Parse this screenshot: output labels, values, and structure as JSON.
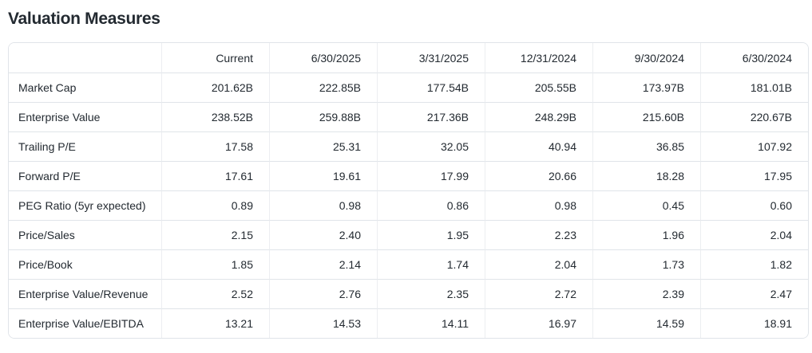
{
  "page": {
    "title": "Valuation Measures"
  },
  "colors": {
    "text": "#232a31",
    "border": "#e0e4e9",
    "background": "#ffffff"
  },
  "table": {
    "columns": [
      "",
      "Current",
      "6/30/2025",
      "3/31/2025",
      "12/31/2024",
      "9/30/2024",
      "6/30/2024"
    ],
    "rows": [
      {
        "label": "Market Cap",
        "values": [
          "201.62B",
          "222.85B",
          "177.54B",
          "205.55B",
          "173.97B",
          "181.01B"
        ]
      },
      {
        "label": "Enterprise Value",
        "values": [
          "238.52B",
          "259.88B",
          "217.36B",
          "248.29B",
          "215.60B",
          "220.67B"
        ]
      },
      {
        "label": "Trailing P/E",
        "values": [
          "17.58",
          "25.31",
          "32.05",
          "40.94",
          "36.85",
          "107.92"
        ]
      },
      {
        "label": "Forward P/E",
        "values": [
          "17.61",
          "19.61",
          "17.99",
          "20.66",
          "18.28",
          "17.95"
        ]
      },
      {
        "label": "PEG Ratio (5yr expected)",
        "values": [
          "0.89",
          "0.98",
          "0.86",
          "0.98",
          "0.45",
          "0.60"
        ]
      },
      {
        "label": "Price/Sales",
        "values": [
          "2.15",
          "2.40",
          "1.95",
          "2.23",
          "1.96",
          "2.04"
        ]
      },
      {
        "label": "Price/Book",
        "values": [
          "1.85",
          "2.14",
          "1.74",
          "2.04",
          "1.73",
          "1.82"
        ]
      },
      {
        "label": "Enterprise Value/Revenue",
        "values": [
          "2.52",
          "2.76",
          "2.35",
          "2.72",
          "2.39",
          "2.47"
        ]
      },
      {
        "label": "Enterprise Value/EBITDA",
        "values": [
          "13.21",
          "14.53",
          "14.11",
          "16.97",
          "14.59",
          "18.91"
        ]
      }
    ]
  }
}
